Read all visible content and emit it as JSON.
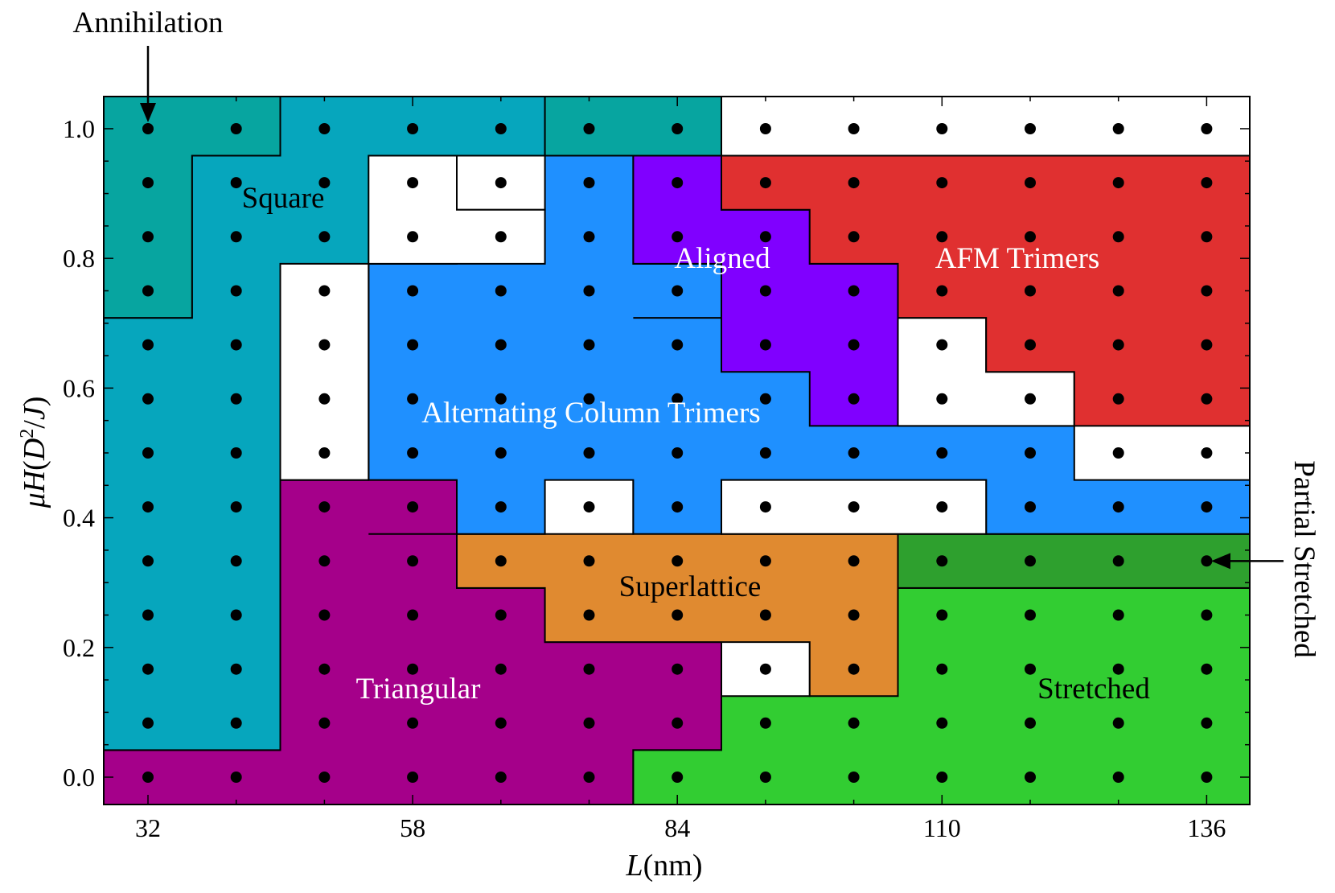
{
  "chart_data": {
    "type": "heatmap",
    "xlabel_var": "L",
    "xlabel_unit": "(nm)",
    "ylabel_prefix": "μH",
    "ylabel_open": "(",
    "ylabel_D": "D",
    "ylabel_exp": "2",
    "ylabel_slash": "/",
    "ylabel_J": "J",
    "ylabel_close": ")",
    "x_ticks": [
      "32",
      "58",
      "84",
      "110",
      "136"
    ],
    "y_ticks": [
      "0.0",
      "0.2",
      "0.4",
      "0.6",
      "0.8",
      "1.0"
    ],
    "x_values": [
      32,
      40.67,
      49.33,
      58,
      66.67,
      75.33,
      84,
      92.67,
      101.33,
      110,
      118.67,
      127.33,
      136
    ],
    "y_values": [
      0,
      0.0833,
      0.1667,
      0.25,
      0.3333,
      0.4167,
      0.5,
      0.5833,
      0.6667,
      0.75,
      0.8333,
      0.9167,
      1.0
    ],
    "phases": [
      {
        "name": "Square",
        "label": "Square",
        "color": "#06a6bd",
        "label_color": "#000000"
      },
      {
        "name": "Annihilation",
        "label": "",
        "color": "#07a5a0",
        "label_color": "#000000"
      },
      {
        "name": "Unlabeled",
        "label": "",
        "color": "#ffffff",
        "label_color": "#000000"
      },
      {
        "name": "Alternating Column Trimers",
        "label": "Alternating Column Trimers",
        "color": "#1f90ff",
        "label_color": "#ffffff"
      },
      {
        "name": "Aligned",
        "label": "Aligned",
        "color": "#8000ff",
        "label_color": "#ffffff"
      },
      {
        "name": "AFM Trimers",
        "label": "AFM Trimers",
        "color": "#e03030",
        "label_color": "#ffffff"
      },
      {
        "name": "Triangular",
        "label": "Triangular",
        "color": "#a5008a",
        "label_color": "#ffffff"
      },
      {
        "name": "Superlattice",
        "label": "Superlattice",
        "color": "#e08a30",
        "label_color": "#000000"
      },
      {
        "name": "Partial Stretched",
        "label": "",
        "color": "#2ea02e",
        "label_color": "#000000"
      },
      {
        "name": "Stretched",
        "label": "Stretched",
        "color": "#32cd32",
        "label_color": "#000000"
      }
    ],
    "annotations": [
      {
        "text": "Annihilation",
        "target": [
          32,
          1.0
        ],
        "arrow": "down"
      },
      {
        "text": "Partial Stretched",
        "target": [
          136,
          0.3333
        ],
        "arrow": "left"
      }
    ],
    "grid": false,
    "legend": "none"
  }
}
